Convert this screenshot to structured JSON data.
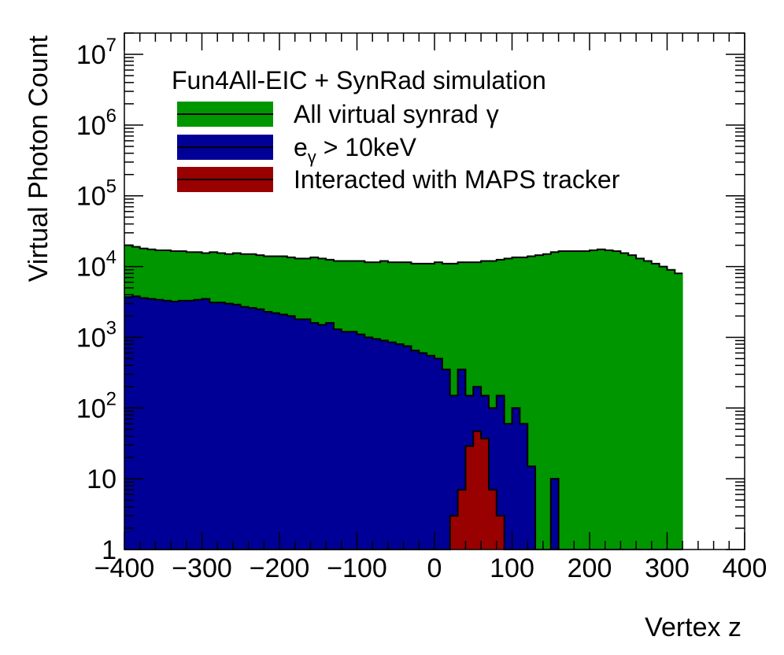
{
  "chart_data": {
    "type": "histogram",
    "xlabel": "Vertex z",
    "ylabel": "Virtual Photon Count",
    "xlim": [
      -400,
      400
    ],
    "ylim": [
      1,
      20000000
    ],
    "log_y": true,
    "grid": false,
    "legend_title": "Fun4All-EIC + SynRad simulation",
    "legend_placement": "top-left",
    "x_ticks": [
      {
        "v": -400,
        "label": "−400"
      },
      {
        "v": -300,
        "label": "−300"
      },
      {
        "v": -200,
        "label": "−200"
      },
      {
        "v": -100,
        "label": "−100"
      },
      {
        "v": 0,
        "label": "0"
      },
      {
        "v": 100,
        "label": "100"
      },
      {
        "v": 200,
        "label": "200"
      },
      {
        "v": 300,
        "label": "300"
      },
      {
        "v": 400,
        "label": "400"
      }
    ],
    "y_ticks": [
      {
        "v": 1,
        "base": "1",
        "exp": ""
      },
      {
        "v": 10,
        "base": "10",
        "exp": ""
      },
      {
        "v": 100,
        "base": "10",
        "exp": "2"
      },
      {
        "v": 1000,
        "base": "10",
        "exp": "3"
      },
      {
        "v": 10000,
        "base": "10",
        "exp": "4"
      },
      {
        "v": 100000,
        "base": "10",
        "exp": "5"
      },
      {
        "v": 1000000,
        "base": "10",
        "exp": "6"
      },
      {
        "v": 10000000,
        "base": "10",
        "exp": "7"
      }
    ],
    "bin_edges_start": -400,
    "bin_width": 10,
    "series": [
      {
        "name": "All virtual synrad γ",
        "legend_main": "All virtual synrad",
        "legend_symbol": "γ",
        "color": "#009600",
        "values": [
          20000,
          19000,
          18000,
          17500,
          17000,
          17000,
          16500,
          16500,
          16000,
          16000,
          15500,
          16000,
          15500,
          15000,
          15500,
          15000,
          15000,
          14500,
          14000,
          14000,
          14000,
          13500,
          13000,
          13000,
          13500,
          13000,
          12500,
          12000,
          12000,
          12000,
          12000,
          11500,
          11500,
          12000,
          11500,
          11500,
          11500,
          11000,
          11000,
          11000,
          11500,
          11000,
          11000,
          11500,
          11500,
          11500,
          12000,
          12000,
          12500,
          13000,
          13500,
          13500,
          14000,
          14500,
          15000,
          16000,
          16500,
          16500,
          16500,
          16500,
          17000,
          17500,
          17000,
          16500,
          15500,
          14500,
          13000,
          12000,
          11000,
          10000,
          9000,
          8000
        ]
      },
      {
        "name": "eγ > 10keV",
        "legend_main": "e",
        "legend_sub": "γ",
        "legend_rest": " > 10keV",
        "color": "#000096",
        "values": [
          3700,
          3800,
          3600,
          3500,
          3400,
          3300,
          3200,
          3300,
          3300,
          3400,
          3500,
          3100,
          3100,
          3000,
          2900,
          2700,
          2600,
          2500,
          2300,
          2200,
          2100,
          2000,
          1800,
          1800,
          1600,
          1500,
          1600,
          1300,
          1200,
          1200,
          1100,
          1000,
          950,
          900,
          850,
          800,
          750,
          650,
          600,
          550,
          500,
          350,
          150,
          350,
          150,
          200,
          150,
          100,
          150,
          60,
          100,
          60,
          15,
          1,
          1,
          10,
          1,
          1,
          1,
          1,
          1,
          1,
          1,
          1,
          1,
          1,
          1,
          1,
          1,
          1,
          1,
          1
        ]
      },
      {
        "name": "Interacted with MAPS tracker",
        "legend_main": "Interacted with MAPS tracker",
        "color": "#990000",
        "values": [
          1,
          1,
          1,
          1,
          1,
          1,
          1,
          1,
          1,
          1,
          1,
          1,
          1,
          1,
          1,
          1,
          1,
          1,
          1,
          1,
          1,
          1,
          1,
          1,
          1,
          1,
          1,
          1,
          1,
          1,
          1,
          1,
          1,
          1,
          1,
          1,
          1,
          1,
          1,
          1,
          1,
          1,
          3,
          7,
          29,
          47,
          37,
          7,
          3,
          1,
          1,
          1,
          1,
          1,
          1,
          1,
          1,
          1,
          1,
          1,
          1,
          1,
          1,
          1,
          1,
          1,
          1,
          1,
          1,
          1,
          1,
          1
        ]
      }
    ]
  }
}
